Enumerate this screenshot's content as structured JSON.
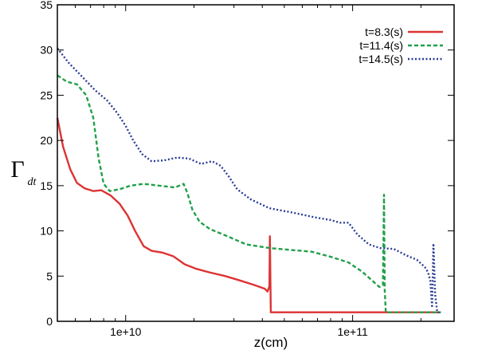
{
  "chart_data": {
    "type": "line",
    "title": "",
    "xlabel": "z(cm)",
    "ylabel": {
      "main": "Γ",
      "sub": "dt"
    },
    "xscale": "log",
    "xlim": [
      5000000000.0,
      280000000000.0
    ],
    "ylim": [
      0,
      35
    ],
    "grid": false,
    "legend_position": "top-right",
    "x_ticks": [
      {
        "value": 10000000000.0,
        "label": "1e+10"
      },
      {
        "value": 100000000000.0,
        "label": "1e+11"
      }
    ],
    "y_ticks": [
      {
        "value": 0,
        "label": "0"
      },
      {
        "value": 5,
        "label": "5"
      },
      {
        "value": 10,
        "label": "10"
      },
      {
        "value": 15,
        "label": "15"
      },
      {
        "value": 20,
        "label": "20"
      },
      {
        "value": 25,
        "label": "25"
      },
      {
        "value": 30,
        "label": "30"
      },
      {
        "value": 35,
        "label": "35"
      }
    ],
    "series": [
      {
        "name": "t=8.3(s)",
        "color": "#dd3333",
        "dash": "solid",
        "points": [
          [
            5000000000.0,
            22.5
          ],
          [
            5300000000.0,
            19.3
          ],
          [
            5700000000.0,
            16.8
          ],
          [
            6100000000.0,
            15.3
          ],
          [
            6600000000.0,
            14.7
          ],
          [
            7200000000.0,
            14.4
          ],
          [
            7800000000.0,
            14.5
          ],
          [
            8600000000.0,
            13.9
          ],
          [
            9400000000.0,
            13.0
          ],
          [
            10200000000.0,
            11.7
          ],
          [
            11000000000.0,
            10.0
          ],
          [
            12000000000.0,
            8.3
          ],
          [
            13000000000.0,
            7.8
          ],
          [
            14500000000.0,
            7.6
          ],
          [
            16200000000.0,
            7.2
          ],
          [
            18200000000.0,
            6.3
          ],
          [
            20500000000.0,
            5.8
          ],
          [
            23500000000.0,
            5.4
          ],
          [
            27500000000.0,
            5.0
          ],
          [
            32000000000.0,
            4.5
          ],
          [
            37000000000.0,
            4.0
          ],
          [
            41000000000.0,
            3.6
          ],
          [
            42200000000.0,
            3.3
          ],
          [
            43000000000.0,
            3.9
          ],
          [
            43200000000.0,
            9.4
          ],
          [
            43400000000.0,
            5.0
          ],
          [
            43600000000.0,
            1.0
          ],
          [
            240000000000.0,
            1.0
          ]
        ]
      },
      {
        "name": "t=11.4(s)",
        "color": "#22a04a",
        "dash": "dashed",
        "points": [
          [
            5000000000.0,
            27.2
          ],
          [
            5500000000.0,
            26.5
          ],
          [
            6100000000.0,
            26.2
          ],
          [
            6700000000.0,
            25.0
          ],
          [
            7200000000.0,
            22.5
          ],
          [
            7600000000.0,
            18.0
          ],
          [
            8000000000.0,
            15.2
          ],
          [
            8500000000.0,
            14.4
          ],
          [
            9400000000.0,
            14.6
          ],
          [
            10500000000.0,
            15.0
          ],
          [
            12000000000.0,
            15.2
          ],
          [
            14000000000.0,
            15.0
          ],
          [
            16500000000.0,
            14.8
          ],
          [
            18000000000.0,
            15.2
          ],
          [
            18700000000.0,
            14.2
          ],
          [
            19700000000.0,
            12.3
          ],
          [
            21200000000.0,
            11.0
          ],
          [
            23500000000.0,
            10.2
          ],
          [
            27500000000.0,
            9.5
          ],
          [
            34000000000.0,
            8.5
          ],
          [
            43000000000.0,
            8.1
          ],
          [
            53000000000.0,
            7.9
          ],
          [
            66000000000.0,
            7.7
          ],
          [
            81000000000.0,
            7.1
          ],
          [
            96000000000.0,
            6.5
          ],
          [
            110000000000.0,
            5.5
          ],
          [
            122000000000.0,
            4.5
          ],
          [
            131000000000.0,
            3.8
          ],
          [
            136000000000.0,
            4.0
          ],
          [
            137500000000.0,
            14.0
          ],
          [
            138500000000.0,
            3.5
          ],
          [
            140000000000.0,
            1.0
          ],
          [
            245000000000.0,
            1.0
          ]
        ]
      },
      {
        "name": "t=14.5(s)",
        "color": "#2a3c96",
        "dash": "dotted",
        "points": [
          [
            5000000000.0,
            30.2
          ],
          [
            5600000000.0,
            28.6
          ],
          [
            6400000000.0,
            27.1
          ],
          [
            7300000000.0,
            25.6
          ],
          [
            8300000000.0,
            24.4
          ],
          [
            9200000000.0,
            23.0
          ],
          [
            10000000000.0,
            21.6
          ],
          [
            10800000000.0,
            20.0
          ],
          [
            11800000000.0,
            18.5
          ],
          [
            13000000000.0,
            17.7
          ],
          [
            14800000000.0,
            17.8
          ],
          [
            16800000000.0,
            18.1
          ],
          [
            19000000000.0,
            18.0
          ],
          [
            21500000000.0,
            17.4
          ],
          [
            24000000000.0,
            17.7
          ],
          [
            26200000000.0,
            17.2
          ],
          [
            28500000000.0,
            16.0
          ],
          [
            31000000000.0,
            14.6
          ],
          [
            35500000000.0,
            13.5
          ],
          [
            43000000000.0,
            12.5
          ],
          [
            55000000000.0,
            12.0
          ],
          [
            68000000000.0,
            11.5
          ],
          [
            80000000000.0,
            11.2
          ],
          [
            88000000000.0,
            10.9
          ],
          [
            96000000000.0,
            10.9
          ],
          [
            105000000000.0,
            9.6
          ],
          [
            118000000000.0,
            8.5
          ],
          [
            132000000000.0,
            8.1
          ],
          [
            152000000000.0,
            8.0
          ],
          [
            172000000000.0,
            7.3
          ],
          [
            192000000000.0,
            6.8
          ],
          [
            208000000000.0,
            6.0
          ],
          [
            215000000000.0,
            5.4
          ],
          [
            220000000000.0,
            4.5
          ],
          [
            224000000000.0,
            1.5
          ],
          [
            227000000000.0,
            8.6
          ],
          [
            231000000000.0,
            3.0
          ],
          [
            236000000000.0,
            1.0
          ],
          [
            245000000000.0,
            1.0
          ]
        ]
      }
    ]
  }
}
